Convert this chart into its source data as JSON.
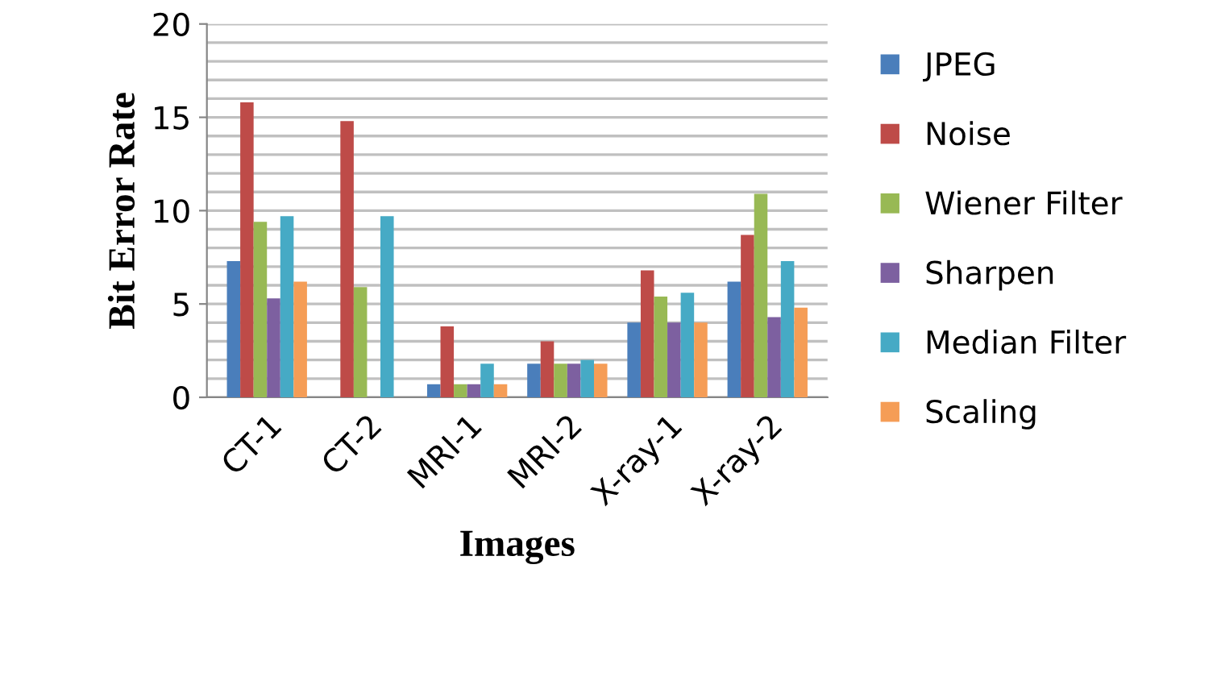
{
  "chart_data": {
    "type": "bar",
    "xlabel": "Images",
    "ylabel": "Bit Error Rate",
    "categories": [
      "CT-1",
      "CT-2",
      "MRI-1",
      "MRI-2",
      "X-ray-1",
      "X-ray-2"
    ],
    "series": [
      {
        "name": "JPEG",
        "color": "#4a7ebb",
        "values": [
          7.3,
          0,
          0.7,
          1.8,
          4.0,
          6.2
        ]
      },
      {
        "name": "Noise",
        "color": "#be4b48",
        "values": [
          15.8,
          14.8,
          3.8,
          3.0,
          6.8,
          8.7
        ]
      },
      {
        "name": "Wiener Filter",
        "color": "#98b954",
        "values": [
          9.4,
          5.9,
          0.7,
          1.8,
          5.4,
          10.9
        ]
      },
      {
        "name": "Sharpen",
        "color": "#7d60a0",
        "values": [
          5.3,
          0,
          0.7,
          1.8,
          4.0,
          4.3
        ]
      },
      {
        "name": "Median Filter",
        "color": "#46aac5",
        "values": [
          9.7,
          9.7,
          1.8,
          2.0,
          5.6,
          7.3
        ]
      },
      {
        "name": "Scaling",
        "color": "#f59d56",
        "values": [
          6.2,
          0,
          0.7,
          1.8,
          4.0,
          4.8
        ]
      }
    ],
    "ylim": [
      0,
      20
    ],
    "yticks": [
      0,
      {
        "value": 1,
        "label": null
      },
      {
        "value": 2,
        "label": null
      },
      {
        "value": 3,
        "label": null
      },
      {
        "value": 4,
        "label": null
      },
      5,
      {
        "value": 6,
        "label": null
      },
      {
        "value": 7,
        "label": null
      },
      {
        "value": 8,
        "label": null
      },
      {
        "value": 9,
        "label": null
      },
      10,
      {
        "value": 11,
        "label": null
      },
      {
        "value": 12,
        "label": null
      },
      {
        "value": 13,
        "label": null
      },
      {
        "value": 14,
        "label": null
      },
      15,
      {
        "value": 16,
        "label": null
      },
      {
        "value": 17,
        "label": null
      },
      {
        "value": 18,
        "label": null
      },
      {
        "value": 19,
        "label": null
      },
      20
    ],
    "grid": "y",
    "legend": "right"
  }
}
